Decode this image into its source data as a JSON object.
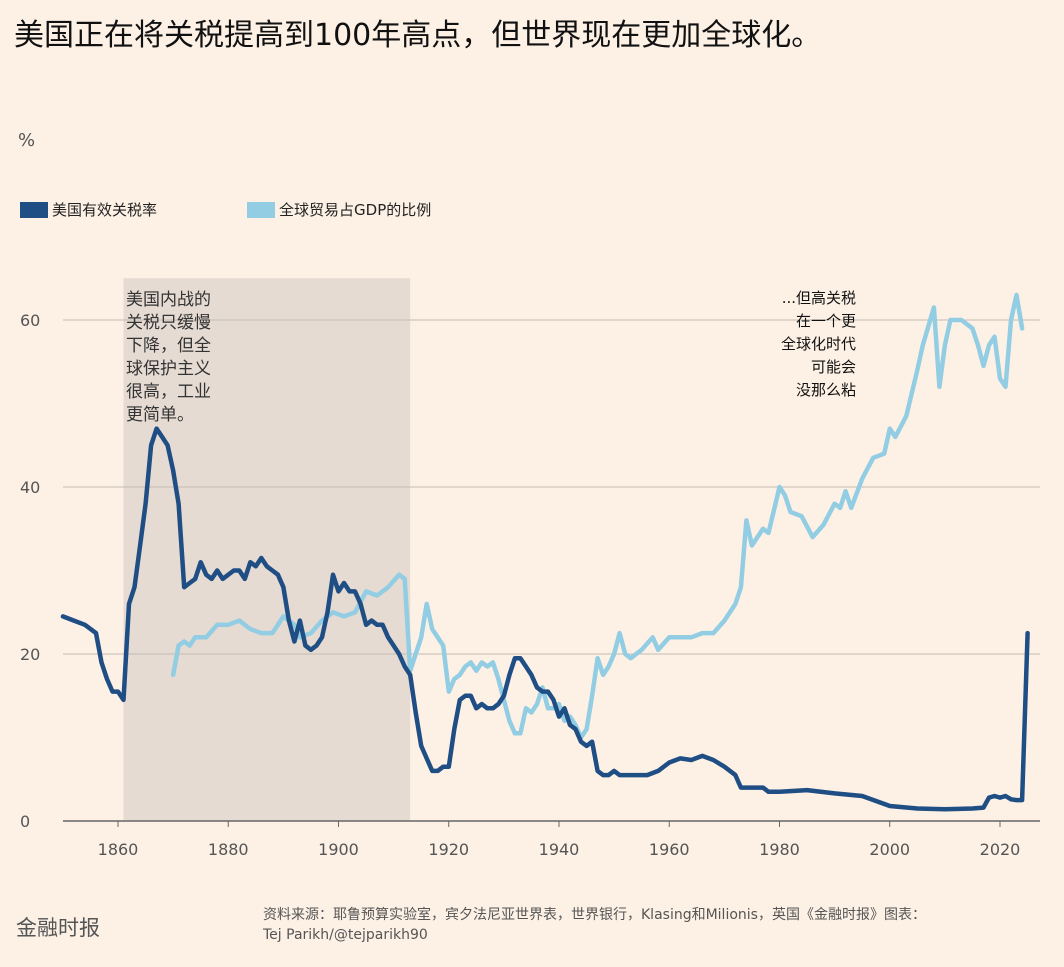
{
  "title": "美国正在将关税提高到100年高点，但世界现在更加全球化。",
  "footer": {
    "logo": "金融时报",
    "source_line1": "资料来源：耶鲁预算实验室，宾夕法尼亚世界表，世界银行，Klasing和Milionis，英国《金融时报》图表：",
    "source_line2": "Tej Parikh/@tejparikh90"
  },
  "chart_data": {
    "type": "line",
    "ylabel": "%",
    "xlim": [
      1850,
      2026
    ],
    "ylim": [
      0,
      65
    ],
    "xticks": [
      1860,
      1880,
      1900,
      1920,
      1940,
      1960,
      1980,
      2000,
      2020
    ],
    "yticks": [
      0,
      20,
      40,
      60
    ],
    "grid": "horizontal",
    "legend_placement": "top-left",
    "shaded_region": {
      "x": [
        1861,
        1913
      ]
    },
    "annotations": [
      {
        "lines": [
          "美国内战的",
          "关税只缓慢",
          "下降，但全",
          "球保护主义",
          "很高，工业",
          "更简单。"
        ]
      },
      {
        "lines": [
          "...但高关税",
          "在一个更",
          "全球化时代",
          "可能会",
          "没那么粘"
        ]
      }
    ],
    "series": [
      {
        "name": "美国有效关税率",
        "color": "#1f4e85",
        "x": [
          1850,
          1852,
          1854,
          1856,
          1857,
          1858,
          1859,
          1860,
          1861,
          1862,
          1863,
          1864,
          1865,
          1866,
          1867,
          1868,
          1869,
          1870,
          1871,
          1872,
          1873,
          1874,
          1875,
          1876,
          1877,
          1878,
          1879,
          1880,
          1881,
          1882,
          1883,
          1884,
          1885,
          1886,
          1887,
          1888,
          1889,
          1890,
          1891,
          1892,
          1893,
          1894,
          1895,
          1896,
          1897,
          1898,
          1899,
          1900,
          1901,
          1902,
          1903,
          1904,
          1905,
          1906,
          1907,
          1908,
          1909,
          1910,
          1911,
          1912,
          1913,
          1914,
          1915,
          1916,
          1917,
          1918,
          1919,
          1920,
          1921,
          1922,
          1923,
          1924,
          1925,
          1926,
          1927,
          1928,
          1929,
          1930,
          1931,
          1932,
          1933,
          1934,
          1935,
          1936,
          1937,
          1938,
          1939,
          1940,
          1941,
          1942,
          1943,
          1944,
          1945,
          1946,
          1947,
          1948,
          1949,
          1950,
          1951,
          1952,
          1953,
          1954,
          1955,
          1956,
          1958,
          1960,
          1962,
          1964,
          1966,
          1968,
          1970,
          1972,
          1973,
          1975,
          1977,
          1978,
          1980,
          1985,
          1990,
          1995,
          2000,
          2005,
          2010,
          2015,
          2017,
          2018,
          2019,
          2020,
          2021,
          2022,
          2023,
          2024,
          2025
        ],
        "y": [
          24.5,
          24,
          23.5,
          22.5,
          19,
          17,
          15.5,
          15.5,
          14.5,
          26,
          28,
          33,
          38,
          45,
          47,
          46,
          45,
          42,
          38,
          28,
          28.5,
          29,
          31,
          29.5,
          29,
          30,
          29,
          29.5,
          30,
          30,
          29,
          31,
          30.5,
          31.5,
          30.5,
          30,
          29.5,
          28,
          24,
          21.5,
          24,
          21,
          20.5,
          21,
          22,
          25,
          29.5,
          27.5,
          28.5,
          27.5,
          27.5,
          26,
          23.5,
          24,
          23.5,
          23.5,
          22,
          21,
          20,
          18.5,
          17.5,
          13,
          9,
          7.5,
          6,
          6,
          6.5,
          6.5,
          11,
          14.5,
          15,
          15,
          13.5,
          14,
          13.5,
          13.5,
          14,
          15,
          17.5,
          19.5,
          19.5,
          18.5,
          17.5,
          16,
          15.5,
          15.5,
          14.5,
          12.5,
          13.5,
          11.5,
          11,
          9.5,
          9,
          9.5,
          6,
          5.5,
          5.5,
          6,
          5.5,
          5.5,
          5.5,
          5.5,
          5.5,
          5.5,
          6,
          7,
          7.5,
          7.3,
          7.8,
          7.3,
          6.5,
          5.5,
          4,
          4,
          4,
          3.5,
          3.5,
          3.7,
          3.3,
          3,
          1.8,
          1.5,
          1.4,
          1.5,
          1.6,
          2.8,
          3,
          2.8,
          3,
          2.6,
          2.5,
          2.5,
          22.5
        ]
      },
      {
        "name": "全球贸易占GDP的比例",
        "color": "#92cde3",
        "x": [
          1870,
          1871,
          1872,
          1873,
          1874,
          1876,
          1878,
          1880,
          1882,
          1884,
          1886,
          1888,
          1890,
          1892,
          1893,
          1895,
          1897,
          1899,
          1901,
          1903,
          1905,
          1907,
          1909,
          1911,
          1912,
          1913,
          1914,
          1915,
          1916,
          1917,
          1918,
          1919,
          1920,
          1921,
          1922,
          1923,
          1924,
          1925,
          1926,
          1927,
          1928,
          1929,
          1930,
          1931,
          1932,
          1933,
          1934,
          1935,
          1936,
          1937,
          1938,
          1939,
          1940,
          1941,
          1942,
          1943,
          1944,
          1945,
          1946,
          1947,
          1948,
          1949,
          1950,
          1951,
          1952,
          1953,
          1955,
          1957,
          1958,
          1960,
          1962,
          1964,
          1966,
          1968,
          1970,
          1972,
          1973,
          1974,
          1975,
          1977,
          1978,
          1980,
          1981,
          1982,
          1984,
          1986,
          1988,
          1990,
          1991,
          1992,
          1993,
          1995,
          1997,
          1999,
          2000,
          2001,
          2003,
          2005,
          2006,
          2008,
          2009,
          2010,
          2011,
          2013,
          2015,
          2016,
          2017,
          2018,
          2019,
          2020,
          2021,
          2022,
          2023,
          2024
        ],
        "y": [
          17.5,
          21,
          21.5,
          21,
          22,
          22,
          23.5,
          23.5,
          24,
          23,
          22.5,
          22.5,
          24.5,
          23.5,
          22,
          22.5,
          24,
          25,
          24.5,
          25,
          27.5,
          27,
          28,
          29.5,
          29,
          18,
          20,
          22,
          26,
          23,
          22,
          21,
          15.5,
          17,
          17.5,
          18.5,
          19,
          18,
          19,
          18.5,
          19,
          17,
          14.5,
          12,
          10.5,
          10.5,
          13.5,
          13,
          14,
          16,
          13.5,
          13.5,
          14,
          12,
          12.5,
          11.5,
          10,
          11,
          15,
          19.5,
          17.5,
          18.5,
          20,
          22.5,
          20,
          19.5,
          20.5,
          22,
          20.5,
          22,
          22,
          22,
          22.5,
          22.5,
          24,
          26,
          28,
          36,
          33,
          35,
          34.5,
          40,
          39,
          37,
          36.5,
          34,
          35.5,
          38,
          37.5,
          39.5,
          37.5,
          41,
          43.5,
          44,
          47,
          46,
          48.5,
          54,
          57,
          61.5,
          52,
          57,
          60,
          60,
          59,
          57,
          54.5,
          57,
          58,
          53,
          52,
          60,
          63,
          59
        ]
      }
    ]
  }
}
